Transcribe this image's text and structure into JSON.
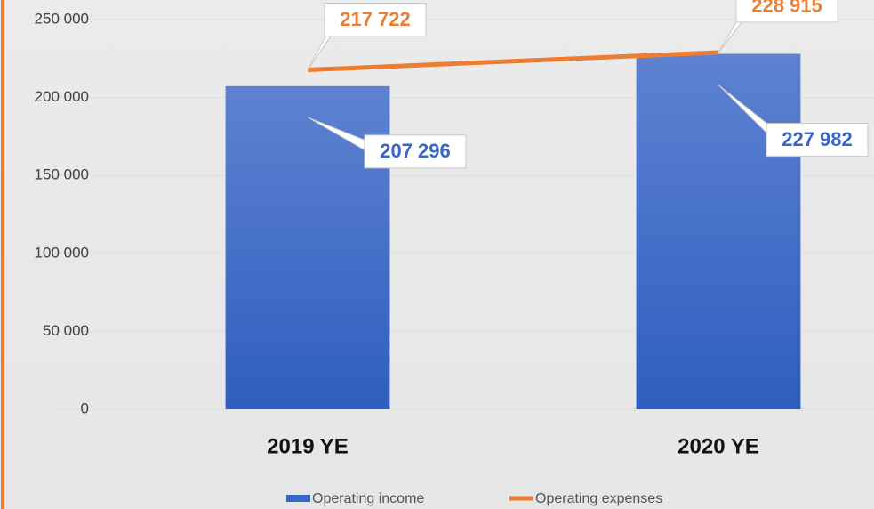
{
  "chart_data": {
    "type": "bar",
    "categories": [
      "2019 YE",
      "2020 YE"
    ],
    "series": [
      {
        "name": "Operating income",
        "type": "bar",
        "color": "#3a66c6",
        "values": [
          207296,
          227982
        ],
        "value_labels": [
          "207 296",
          "227 982"
        ]
      },
      {
        "name": "Operating expenses",
        "type": "line",
        "color": "#ed7d31",
        "values": [
          217722,
          228915
        ],
        "value_labels": [
          "217 722",
          "228 915"
        ]
      }
    ],
    "ylim": [
      0,
      250000
    ],
    "yticks": [
      {
        "value": 0,
        "label": "0"
      },
      {
        "value": 50000,
        "label": "50 000"
      },
      {
        "value": 100000,
        "label": "100 000"
      },
      {
        "value": 150000,
        "label": "150 000"
      },
      {
        "value": 200000,
        "label": "200 000"
      },
      {
        "value": 250000,
        "label": "250 000"
      }
    ],
    "grid": true,
    "legend": "bottom"
  }
}
